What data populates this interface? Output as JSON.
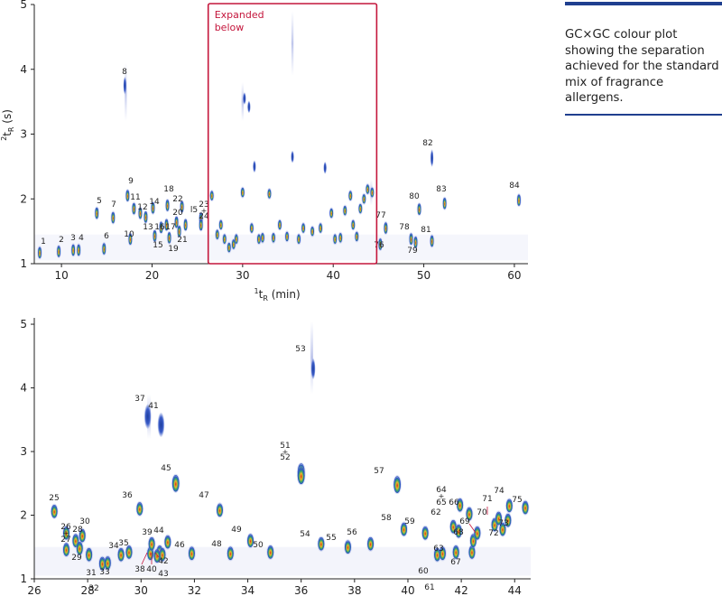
{
  "caption": "GC×GC colour plot showing the separation achieved for the standard mix of fragrance allergens.",
  "colors": {
    "highlight_box": "#c4163c",
    "caption_rule": "#1f3f8f",
    "axis": "#222222"
  },
  "chart_data": [
    {
      "type": "heatmap",
      "title": "",
      "xlabel": "¹t_R (min)",
      "xlabel_main": "t",
      "xlabel_sup": "1",
      "xlabel_sub": "R",
      "xlabel_unit": " (min)",
      "ylabel": "²t_R (s)",
      "ylabel_main": "t",
      "ylabel_sup": "2",
      "ylabel_sub": "R",
      "ylabel_unit": " (s)",
      "xlim": [
        7,
        61.5
      ],
      "ylim": [
        1,
        5
      ],
      "xticks": [
        "10",
        "20",
        "30",
        "40",
        "50",
        "60"
      ],
      "yticks": [
        "1",
        "2",
        "3",
        "4",
        "5"
      ],
      "annotation": {
        "text_line1": "Expanded",
        "text_line2": "below",
        "x_range": [
          26.2,
          44.8
        ],
        "y_range": [
          1,
          5
        ]
      },
      "peaks": [
        {
          "label": "1",
          "x": 7.6,
          "y": 1.17
        },
        {
          "label": "2",
          "x": 9.7,
          "y": 1.19
        },
        {
          "label": "3",
          "x": 11.3,
          "y": 1.21
        },
        {
          "label": "4",
          "x": 11.9,
          "y": 1.21
        },
        {
          "label": "5",
          "x": 13.9,
          "y": 1.78
        },
        {
          "label": "6",
          "x": 14.7,
          "y": 1.23
        },
        {
          "label": "7",
          "x": 15.7,
          "y": 1.71
        },
        {
          "label": "8",
          "x": 17.0,
          "y": 3.75
        },
        {
          "label": "9",
          "x": 17.3,
          "y": 2.05
        },
        {
          "label": "10",
          "x": 17.6,
          "y": 1.38
        },
        {
          "label": "11",
          "x": 18.0,
          "y": 1.85
        },
        {
          "label": "12",
          "x": 18.7,
          "y": 1.78
        },
        {
          "label": "13",
          "x": 19.3,
          "y": 1.72
        },
        {
          "label": "14",
          "x": 20.1,
          "y": 1.86
        },
        {
          "label": "15",
          "x": 20.3,
          "y": 1.43
        },
        {
          "label": "16",
          "x": 21.0,
          "y": 1.56
        },
        {
          "label": "17",
          "x": 21.6,
          "y": 1.6
        },
        {
          "label": "18",
          "x": 21.7,
          "y": 1.9
        },
        {
          "label": "19",
          "x": 21.9,
          "y": 1.4
        },
        {
          "label": "20",
          "x": 22.7,
          "y": 1.64
        },
        {
          "label": "21",
          "x": 23.0,
          "y": 1.5
        },
        {
          "label": "22",
          "x": 23.3,
          "y": 1.88
        },
        {
          "label": "l5",
          "x": 23.7,
          "y": 1.6
        },
        {
          "label": "23",
          "x": 25.4,
          "y": 1.7
        },
        {
          "label": "24",
          "x": 25.4,
          "y": 1.6
        },
        {
          "label": "76",
          "x": 45.2,
          "y": 1.3
        },
        {
          "label": "77",
          "x": 45.8,
          "y": 1.55
        },
        {
          "label": "78",
          "x": 48.6,
          "y": 1.38
        },
        {
          "label": "79",
          "x": 49.1,
          "y": 1.33
        },
        {
          "label": "80",
          "x": 49.5,
          "y": 1.84
        },
        {
          "label": "81",
          "x": 50.9,
          "y": 1.35
        },
        {
          "label": "82",
          "x": 50.9,
          "y": 2.63
        },
        {
          "label": "83",
          "x": 52.3,
          "y": 1.93
        },
        {
          "label": "84",
          "x": 60.5,
          "y": 1.98
        }
      ]
    },
    {
      "type": "heatmap",
      "title": "",
      "xlabel": "",
      "ylabel": "",
      "xlim": [
        26,
        44.6
      ],
      "ylim": [
        1,
        5.1
      ],
      "xticks": [
        "26",
        "28",
        "30",
        "32",
        "34",
        "36",
        "38",
        "40",
        "42",
        "44"
      ],
      "yticks": [
        "1",
        "2",
        "3",
        "4",
        "5"
      ],
      "peaks": [
        {
          "label": "25",
          "x": 26.75,
          "y": 2.06
        },
        {
          "label": "26",
          "x": 27.2,
          "y": 1.72
        },
        {
          "label": "27",
          "x": 27.2,
          "y": 1.46
        },
        {
          "label": "28",
          "x": 27.55,
          "y": 1.6
        },
        {
          "label": "29",
          "x": 27.7,
          "y": 1.48
        },
        {
          "label": "30",
          "x": 27.8,
          "y": 1.68
        },
        {
          "label": "31",
          "x": 28.05,
          "y": 1.38
        },
        {
          "label": "32",
          "x": 28.55,
          "y": 1.24
        },
        {
          "label": "33",
          "x": 28.75,
          "y": 1.25
        },
        {
          "label": "34",
          "x": 29.25,
          "y": 1.38
        },
        {
          "label": "35",
          "x": 29.55,
          "y": 1.42
        },
        {
          "label": "36",
          "x": 29.95,
          "y": 2.1
        },
        {
          "label": "37",
          "x": 30.25,
          "y": 3.55
        },
        {
          "label": "38",
          "x": 30.35,
          "y": 1.4
        },
        {
          "label": "39",
          "x": 30.4,
          "y": 1.55
        },
        {
          "label": "40",
          "x": 30.7,
          "y": 1.42
        },
        {
          "label": "41",
          "x": 30.75,
          "y": 3.42
        },
        {
          "label": "42",
          "x": 30.8,
          "y": 1.38
        },
        {
          "label": "43",
          "x": 30.6,
          "y": 1.36
        },
        {
          "label": "44",
          "x": 31.0,
          "y": 1.58
        },
        {
          "label": "45",
          "x": 31.3,
          "y": 2.5
        },
        {
          "label": "46",
          "x": 31.9,
          "y": 1.4
        },
        {
          "label": "47",
          "x": 32.95,
          "y": 2.08
        },
        {
          "label": "48",
          "x": 33.35,
          "y": 1.4
        },
        {
          "label": "49",
          "x": 34.1,
          "y": 1.6
        },
        {
          "label": "50",
          "x": 34.85,
          "y": 1.42
        },
        {
          "label": "51",
          "x": 36.0,
          "y": 2.68
        },
        {
          "label": "52",
          "x": 36.0,
          "y": 2.62
        },
        {
          "label": "53",
          "x": 36.45,
          "y": 4.3
        },
        {
          "label": "54",
          "x": 36.75,
          "y": 1.55
        },
        {
          "label": "55",
          "x": 37.75,
          "y": 1.5
        },
        {
          "label": "56",
          "x": 38.6,
          "y": 1.55
        },
        {
          "label": "57",
          "x": 39.6,
          "y": 2.48
        },
        {
          "label": "58",
          "x": 39.85,
          "y": 1.78
        },
        {
          "label": "59",
          "x": 40.65,
          "y": 1.72
        },
        {
          "label": "60",
          "x": 41.1,
          "y": 1.38
        },
        {
          "label": "61",
          "x": 41.3,
          "y": 1.4
        },
        {
          "label": "62",
          "x": 41.7,
          "y": 1.82
        },
        {
          "label": "63",
          "x": 41.8,
          "y": 1.42
        },
        {
          "label": "64",
          "x": 41.95,
          "y": 2.16
        },
        {
          "label": "65",
          "x": 41.9,
          "y": 1.75
        },
        {
          "label": "66",
          "x": 42.3,
          "y": 2.02
        },
        {
          "label": "67",
          "x": 42.4,
          "y": 1.42
        },
        {
          "label": "68",
          "x": 42.45,
          "y": 1.6
        },
        {
          "label": "69",
          "x": 42.6,
          "y": 1.72
        },
        {
          "label": "70",
          "x": 43.25,
          "y": 1.85
        },
        {
          "label": "71",
          "x": 43.4,
          "y": 1.95
        },
        {
          "label": "72",
          "x": 43.55,
          "y": 1.78
        },
        {
          "label": "73",
          "x": 43.75,
          "y": 1.92
        },
        {
          "label": "74",
          "x": 43.8,
          "y": 2.15
        },
        {
          "label": "75",
          "x": 44.4,
          "y": 2.12
        }
      ]
    }
  ]
}
